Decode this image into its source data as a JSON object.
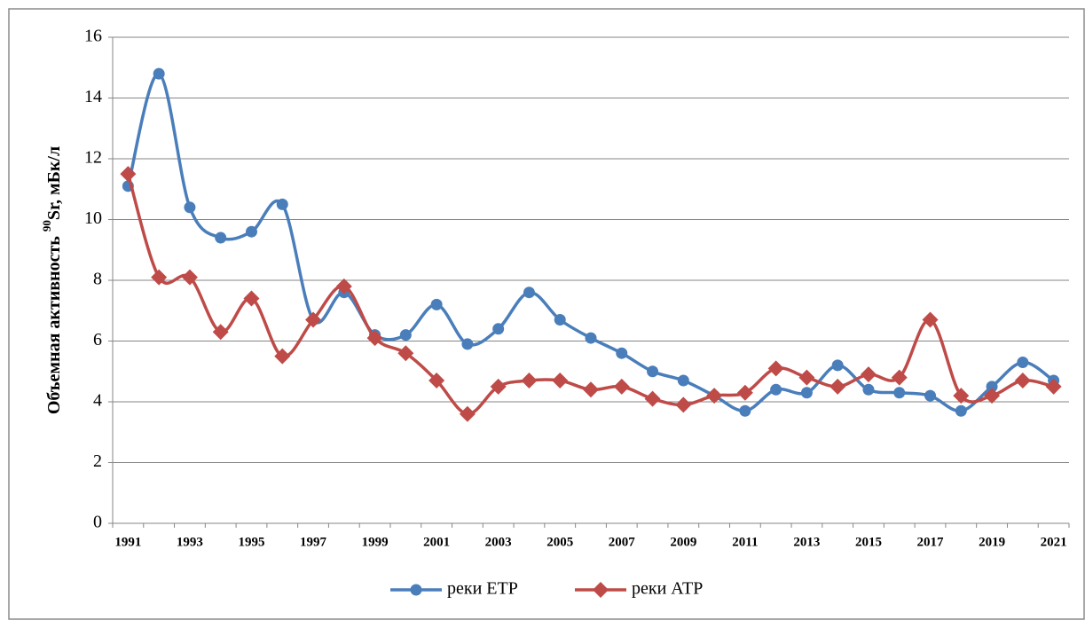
{
  "chart_data": {
    "type": "line",
    "ylabel": {
      "prefix": "Объемная активность ",
      "sup": "90",
      "suffix": "Sr, мБк/л"
    },
    "categories": [
      "1991",
      null,
      "1993",
      null,
      "1995",
      null,
      "1997",
      null,
      "1999",
      null,
      "2001",
      null,
      "2003",
      null,
      "2005",
      null,
      "2007",
      null,
      "2009",
      null,
      "2011",
      null,
      "2013",
      null,
      "2015",
      null,
      "2017",
      null,
      "2019",
      null,
      "2021"
    ],
    "series": [
      {
        "name": "реки ЕТР",
        "color": "#4a7ebb",
        "marker": "circle",
        "values": [
          11.1,
          14.8,
          10.4,
          9.4,
          9.6,
          10.5,
          6.7,
          7.6,
          6.2,
          6.2,
          7.2,
          5.9,
          6.4,
          7.6,
          6.7,
          6.1,
          5.6,
          5.0,
          4.7,
          4.2,
          3.7,
          4.4,
          4.3,
          5.2,
          4.4,
          4.3,
          4.2,
          3.7,
          4.5,
          5.3,
          4.7
        ]
      },
      {
        "name": "реки АТР",
        "color": "#be4b48",
        "marker": "diamond",
        "values": [
          11.5,
          8.1,
          8.1,
          6.3,
          7.4,
          5.5,
          6.7,
          7.8,
          6.1,
          5.6,
          4.7,
          3.6,
          4.5,
          4.7,
          4.7,
          4.4,
          4.5,
          4.1,
          3.9,
          4.2,
          4.3,
          5.1,
          4.8,
          4.5,
          4.9,
          4.8,
          6.7,
          4.2,
          4.2,
          4.7,
          4.5
        ]
      }
    ],
    "ylim": [
      0,
      16
    ],
    "yticks": [
      0,
      2,
      4,
      6,
      8,
      10,
      12,
      14,
      16
    ],
    "grid": true,
    "smooth": true,
    "legend": "bottom"
  }
}
